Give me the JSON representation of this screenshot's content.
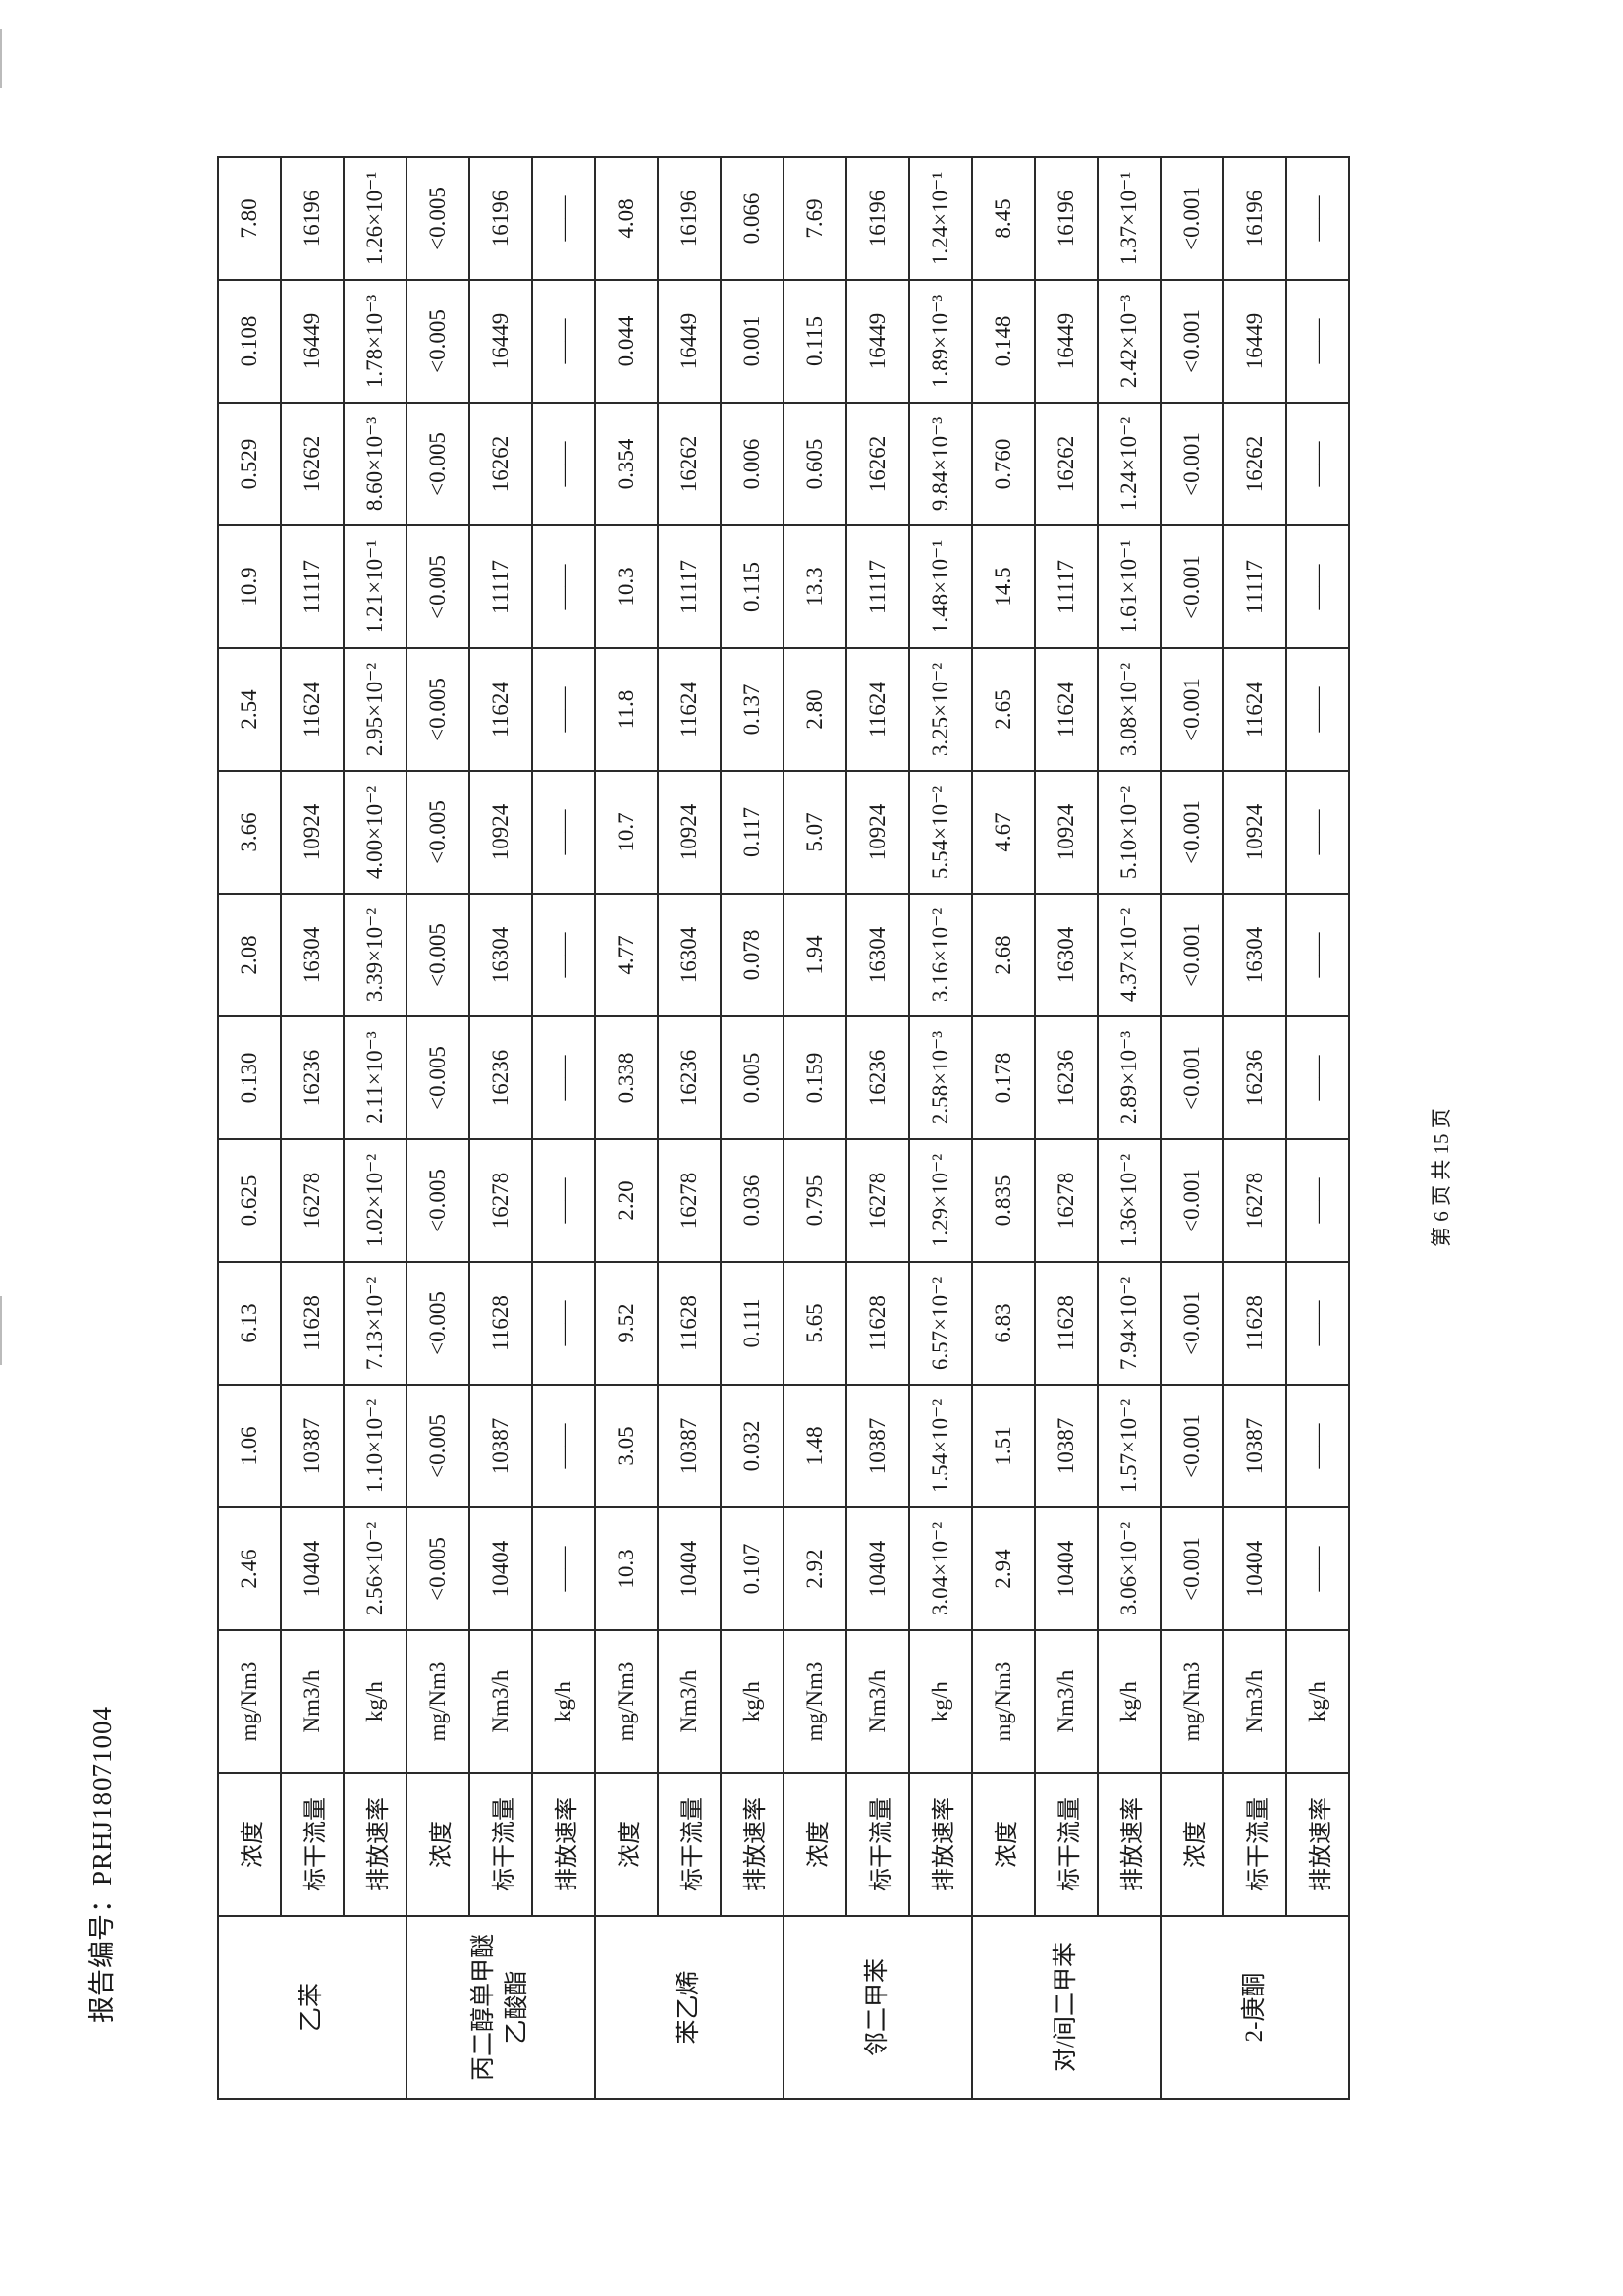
{
  "header": {
    "report_number": "报告编号：PRHJ18071004"
  },
  "footer": {
    "page": "第 6 页 共 15 页"
  },
  "table": {
    "groups": [
      {
        "substance": "乙苯",
        "rows": [
          {
            "param": "浓度",
            "unit": "mg/Nm3",
            "values": [
              "2.46",
              "1.06",
              "6.13",
              "0.625",
              "0.130",
              "2.08",
              "3.66",
              "2.54",
              "10.9",
              "0.529",
              "0.108",
              "7.80"
            ]
          },
          {
            "param": "标干流量",
            "unit": "Nm3/h",
            "values": [
              "10404",
              "10387",
              "11628",
              "16278",
              "16236",
              "16304",
              "10924",
              "11624",
              "11117",
              "16262",
              "16449",
              "16196"
            ]
          },
          {
            "param": "排放速率",
            "unit": "kg/h",
            "values": [
              "2.56×10⁻²",
              "1.10×10⁻²",
              "7.13×10⁻²",
              "1.02×10⁻²",
              "2.11×10⁻³",
              "3.39×10⁻²",
              "4.00×10⁻²",
              "2.95×10⁻²",
              "1.21×10⁻¹",
              "8.60×10⁻³",
              "1.78×10⁻³",
              "1.26×10⁻¹"
            ]
          }
        ]
      },
      {
        "substance": "丙二醇单甲醚乙酸酯",
        "rows": [
          {
            "param": "浓度",
            "unit": "mg/Nm3",
            "values": [
              "<0.005",
              "<0.005",
              "<0.005",
              "<0.005",
              "<0.005",
              "<0.005",
              "<0.005",
              "<0.005",
              "<0.005",
              "<0.005",
              "<0.005",
              "<0.005"
            ]
          },
          {
            "param": "标干流量",
            "unit": "Nm3/h",
            "values": [
              "10404",
              "10387",
              "11628",
              "16278",
              "16236",
              "16304",
              "10924",
              "11624",
              "11117",
              "16262",
              "16449",
              "16196"
            ]
          },
          {
            "param": "排放速率",
            "unit": "kg/h",
            "values": [
              "——",
              "——",
              "——",
              "——",
              "——",
              "——",
              "——",
              "——",
              "——",
              "——",
              "——",
              "——"
            ]
          }
        ]
      },
      {
        "substance": "苯乙烯",
        "rows": [
          {
            "param": "浓度",
            "unit": "mg/Nm3",
            "values": [
              "10.3",
              "3.05",
              "9.52",
              "2.20",
              "0.338",
              "4.77",
              "10.7",
              "11.8",
              "10.3",
              "0.354",
              "0.044",
              "4.08"
            ]
          },
          {
            "param": "标干流量",
            "unit": "Nm3/h",
            "values": [
              "10404",
              "10387",
              "11628",
              "16278",
              "16236",
              "16304",
              "10924",
              "11624",
              "11117",
              "16262",
              "16449",
              "16196"
            ]
          },
          {
            "param": "排放速率",
            "unit": "kg/h",
            "values": [
              "0.107",
              "0.032",
              "0.111",
              "0.036",
              "0.005",
              "0.078",
              "0.117",
              "0.137",
              "0.115",
              "0.006",
              "0.001",
              "0.066"
            ]
          }
        ]
      },
      {
        "substance": "邻二甲苯",
        "rows": [
          {
            "param": "浓度",
            "unit": "mg/Nm3",
            "values": [
              "2.92",
              "1.48",
              "5.65",
              "0.795",
              "0.159",
              "1.94",
              "5.07",
              "2.80",
              "13.3",
              "0.605",
              "0.115",
              "7.69"
            ]
          },
          {
            "param": "标干流量",
            "unit": "Nm3/h",
            "values": [
              "10404",
              "10387",
              "11628",
              "16278",
              "16236",
              "16304",
              "10924",
              "11624",
              "11117",
              "16262",
              "16449",
              "16196"
            ]
          },
          {
            "param": "排放速率",
            "unit": "kg/h",
            "values": [
              "3.04×10⁻²",
              "1.54×10⁻²",
              "6.57×10⁻²",
              "1.29×10⁻²",
              "2.58×10⁻³",
              "3.16×10⁻²",
              "5.54×10⁻²",
              "3.25×10⁻²",
              "1.48×10⁻¹",
              "9.84×10⁻³",
              "1.89×10⁻³",
              "1.24×10⁻¹"
            ]
          }
        ]
      },
      {
        "substance": "对/间二甲苯",
        "rows": [
          {
            "param": "浓度",
            "unit": "mg/Nm3",
            "values": [
              "2.94",
              "1.51",
              "6.83",
              "0.835",
              "0.178",
              "2.68",
              "4.67",
              "2.65",
              "14.5",
              "0.760",
              "0.148",
              "8.45"
            ]
          },
          {
            "param": "标干流量",
            "unit": "Nm3/h",
            "values": [
              "10404",
              "10387",
              "11628",
              "16278",
              "16236",
              "16304",
              "10924",
              "11624",
              "11117",
              "16262",
              "16449",
              "16196"
            ]
          },
          {
            "param": "排放速率",
            "unit": "kg/h",
            "values": [
              "3.06×10⁻²",
              "1.57×10⁻²",
              "7.94×10⁻²",
              "1.36×10⁻²",
              "2.89×10⁻³",
              "4.37×10⁻²",
              "5.10×10⁻²",
              "3.08×10⁻²",
              "1.61×10⁻¹",
              "1.24×10⁻²",
              "2.42×10⁻³",
              "1.37×10⁻¹"
            ]
          }
        ]
      },
      {
        "substance": "2-庚酮",
        "rows": [
          {
            "param": "浓度",
            "unit": "mg/Nm3",
            "values": [
              "<0.001",
              "<0.001",
              "<0.001",
              "<0.001",
              "<0.001",
              "<0.001",
              "<0.001",
              "<0.001",
              "<0.001",
              "<0.001",
              "<0.001",
              "<0.001"
            ]
          },
          {
            "param": "标干流量",
            "unit": "Nm3/h",
            "values": [
              "10404",
              "10387",
              "11628",
              "16278",
              "16236",
              "16304",
              "10924",
              "11624",
              "11117",
              "16262",
              "16449",
              "16196"
            ]
          },
          {
            "param": "排放速率",
            "unit": "kg/h",
            "values": [
              "——",
              "——",
              "——",
              "——",
              "——",
              "——",
              "——",
              "——",
              "——",
              "——",
              "——",
              "——"
            ]
          }
        ]
      }
    ]
  }
}
